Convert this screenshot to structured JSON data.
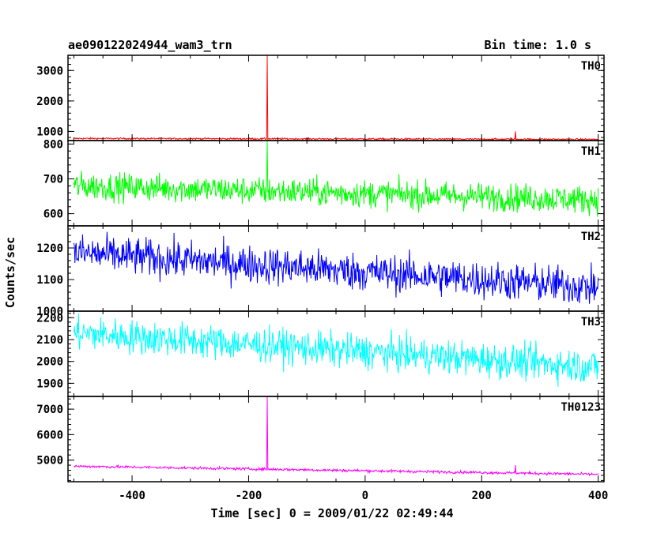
{
  "chart_data": {
    "type": "line",
    "title": "ae090122024944_wam3_trn",
    "subtitle": "Bin time: 1.0 s",
    "xlabel": "Time [sec] 0 = 2009/01/22 02:49:44",
    "ylabel": "Counts/sec",
    "xlim": [
      -510,
      410
    ],
    "xticks": [
      -400,
      -200,
      0,
      200,
      400
    ],
    "grid": false,
    "panels": [
      {
        "name": "TH0",
        "color": "#ff0000",
        "ylim": [
          700,
          3500
        ],
        "yticks": [
          1000,
          2000,
          3000
        ],
        "trend_start": 770,
        "trend_end": 740,
        "noise": 18,
        "spikes": [
          {
            "x": -168,
            "y": 3500
          },
          {
            "x": 258,
            "y": 1000
          }
        ]
      },
      {
        "name": "TH1",
        "color": "#00ff00",
        "ylim": [
          565,
          810
        ],
        "yticks": [
          600,
          700,
          800
        ],
        "trend_start": 680,
        "trend_end": 640,
        "noise": 28,
        "spikes": [
          {
            "x": -168,
            "y": 810
          }
        ]
      },
      {
        "name": "TH2",
        "color": "#0000ff",
        "ylim": [
          1000,
          1270
        ],
        "yticks": [
          1000,
          1100,
          1200
        ],
        "trend_start": 1185,
        "trend_end": 1075,
        "noise": 42,
        "spikes": []
      },
      {
        "name": "TH3",
        "color": "#00ffff",
        "ylim": [
          1840,
          2230
        ],
        "yticks": [
          1900,
          2000,
          2100,
          2200
        ],
        "trend_start": 2130,
        "trend_end": 1975,
        "noise": 55,
        "spikes": []
      },
      {
        "name": "TH0123",
        "color": "#ff00ff",
        "ylim": [
          4150,
          7500
        ],
        "yticks": [
          5000,
          6000,
          7000
        ],
        "trend_start": 4760,
        "trend_end": 4440,
        "noise": 38,
        "spikes": [
          {
            "x": -168,
            "y": 7500
          },
          {
            "x": 258,
            "y": 4800
          }
        ]
      }
    ]
  }
}
